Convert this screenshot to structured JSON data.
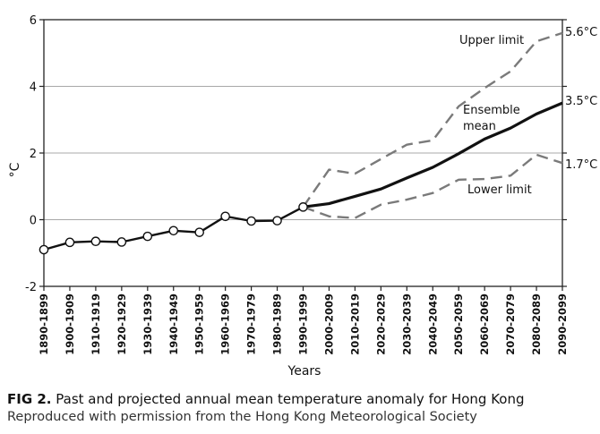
{
  "chart_data": {
    "type": "line",
    "xlabel": "Years",
    "ylabel": "°C",
    "ylim": [
      -2,
      6
    ],
    "yticks": [
      "-2",
      "0",
      "2",
      "4",
      "6"
    ],
    "grid": true,
    "categories": [
      "1890-1899",
      "1900-1909",
      "1910-1919",
      "1920-1929",
      "1930-1939",
      "1940-1949",
      "1950-1959",
      "1960-1969",
      "1970-1979",
      "1980-1989",
      "1990-1999",
      "2000-2009",
      "2010-2019",
      "2020-2029",
      "2030-2039",
      "2040-2049",
      "2050-2059",
      "2060-2069",
      "2070-2079",
      "2080-2089",
      "2090-2099"
    ],
    "series": [
      {
        "name": "",
        "style": "solid-markers",
        "color": "#111111",
        "values": [
          -0.9,
          -0.68,
          -0.65,
          -0.67,
          -0.5,
          -0.33,
          -0.38,
          0.1,
          -0.04,
          -0.03,
          0.38,
          null,
          null,
          null,
          null,
          null,
          null,
          null,
          null,
          null,
          null
        ]
      },
      {
        "name": "Ensemble mean",
        "style": "solid",
        "color": "#111111",
        "values": [
          null,
          null,
          null,
          null,
          null,
          null,
          null,
          null,
          null,
          null,
          0.38,
          0.48,
          0.7,
          0.92,
          1.25,
          1.57,
          1.98,
          2.42,
          2.75,
          3.17,
          3.5
        ]
      },
      {
        "name": "Upper limit",
        "style": "dashed",
        "color": "#7a7a7a",
        "values": [
          null,
          null,
          null,
          null,
          null,
          null,
          null,
          null,
          null,
          null,
          0.38,
          1.5,
          1.38,
          1.82,
          2.25,
          2.38,
          3.4,
          3.95,
          4.45,
          5.35,
          5.6
        ]
      },
      {
        "name": "Lower limit",
        "style": "dashed",
        "color": "#7a7a7a",
        "values": [
          null,
          null,
          null,
          null,
          null,
          null,
          null,
          null,
          null,
          null,
          0.38,
          0.1,
          0.05,
          0.45,
          0.6,
          0.8,
          1.2,
          1.22,
          1.32,
          1.95,
          1.7
        ]
      }
    ],
    "end_labels": [
      "5.6°C",
      "3.5°C",
      "1.7°C"
    ],
    "annotations": {
      "upper": "Upper limit",
      "ensemble_line1": "Ensemble",
      "ensemble_line2": "mean",
      "lower": "Lower limit"
    }
  },
  "caption": {
    "fig_label": "FIG 2.",
    "title": "Past and projected annual mean temperature anomaly for Hong Kong",
    "source": "Reproduced with permission from the Hong Kong Meteorological Society"
  }
}
